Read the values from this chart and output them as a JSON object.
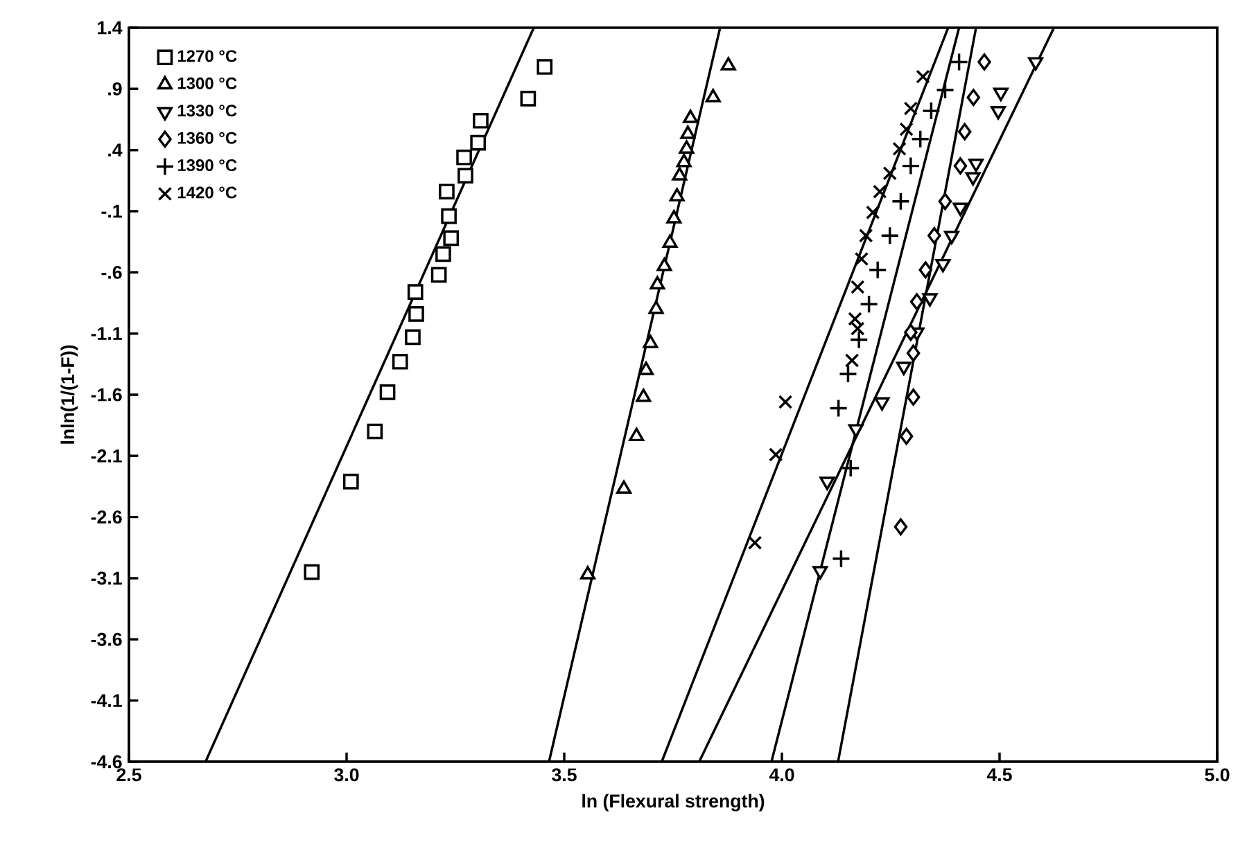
{
  "chart_data": {
    "type": "scatter",
    "xlabel": "ln (Flexural strength)",
    "ylabel": "lnln(1/(1-F))",
    "xlim": [
      2.5,
      5.0
    ],
    "ylim": [
      -4.6,
      1.4
    ],
    "xticks": [
      {
        "value": 2.5,
        "label": "2.5"
      },
      {
        "value": 3.0,
        "label": "3.0"
      },
      {
        "value": 3.5,
        "label": "3.5"
      },
      {
        "value": 4.0,
        "label": "4.0"
      },
      {
        "value": 4.5,
        "label": "4.5"
      },
      {
        "value": 5.0,
        "label": "5.0"
      }
    ],
    "yticks": [
      {
        "value": 1.4,
        "label": "1.4"
      },
      {
        "value": 0.9,
        "label": ".9"
      },
      {
        "value": 0.4,
        "label": ".4"
      },
      {
        "value": -0.1,
        "label": "-.1"
      },
      {
        "value": -0.6,
        "label": "-.6"
      },
      {
        "value": -1.1,
        "label": "-1.1"
      },
      {
        "value": -1.6,
        "label": "-1.6"
      },
      {
        "value": -2.1,
        "label": "-2.1"
      },
      {
        "value": -2.6,
        "label": "-2.6"
      },
      {
        "value": -3.1,
        "label": "-3.1"
      },
      {
        "value": -3.6,
        "label": "-3.6"
      },
      {
        "value": -4.1,
        "label": "-4.1"
      },
      {
        "value": -4.6,
        "label": "-4.6"
      }
    ],
    "grid": false,
    "legend": "top left",
    "series": [
      {
        "name": "1270 °C",
        "marker": "square",
        "color": "#000000",
        "x": [
          3.455,
          3.417,
          3.308,
          3.302,
          3.27,
          3.273,
          3.23,
          3.235,
          3.24,
          3.222,
          3.212,
          3.158,
          3.16,
          3.152,
          3.123,
          3.094,
          3.065,
          3.01,
          2.92
        ],
        "values": [
          1.08,
          0.82,
          0.64,
          0.46,
          0.34,
          0.19,
          0.06,
          -0.14,
          -0.32,
          -0.45,
          -0.62,
          -0.76,
          -0.94,
          -1.13,
          -1.33,
          -1.58,
          -1.9,
          -2.31,
          -3.05
        ]
      },
      {
        "name": "1300 °C",
        "marker": "triangle",
        "color": "#000000",
        "x": [
          3.877,
          3.842,
          3.79,
          3.784,
          3.781,
          3.775,
          3.765,
          3.759,
          3.752,
          3.743,
          3.73,
          3.714,
          3.711,
          3.698,
          3.688,
          3.682,
          3.666,
          3.637,
          3.554
        ],
        "values": [
          1.09,
          0.83,
          0.66,
          0.53,
          0.41,
          0.3,
          0.19,
          0.02,
          -0.16,
          -0.36,
          -0.55,
          -0.7,
          -0.9,
          -1.18,
          -1.4,
          -1.62,
          -1.94,
          -2.37,
          -3.07
        ]
      },
      {
        "name": "1330 °C",
        "marker": "triangle-down",
        "color": "#000000",
        "x": [
          4.583,
          4.503,
          4.497,
          4.446,
          4.439,
          4.41,
          4.39,
          4.37,
          4.34,
          4.31,
          4.28,
          4.23,
          4.17,
          4.104,
          4.088
        ],
        "values": [
          1.12,
          0.87,
          0.72,
          0.29,
          0.18,
          -0.07,
          -0.3,
          -0.53,
          -0.81,
          -1.09,
          -1.37,
          -1.66,
          -1.88,
          -2.31,
          -3.04
        ]
      },
      {
        "name": "1360 °C",
        "marker": "diamond",
        "color": "#000000",
        "x": [
          4.465,
          4.44,
          4.42,
          4.41,
          4.375,
          4.35,
          4.33,
          4.31,
          4.296,
          4.302,
          4.302,
          4.286,
          4.273
        ],
        "values": [
          1.12,
          0.83,
          0.55,
          0.27,
          -0.02,
          -0.3,
          -0.58,
          -0.84,
          -1.09,
          -1.26,
          -1.62,
          -1.94,
          -2.68
        ]
      },
      {
        "name": "1390 °C",
        "marker": "plus",
        "color": "#000000",
        "x": [
          4.407,
          4.375,
          4.343,
          4.318,
          4.296,
          4.273,
          4.248,
          4.22,
          4.2,
          4.177,
          4.152,
          4.13,
          4.158,
          4.136
        ],
        "values": [
          1.12,
          0.89,
          0.72,
          0.49,
          0.27,
          -0.02,
          -0.3,
          -0.58,
          -0.86,
          -1.15,
          -1.43,
          -1.71,
          -2.2,
          -2.94
        ]
      },
      {
        "name": "1420 °C",
        "marker": "cross",
        "color": "#000000",
        "x": [
          4.324,
          4.296,
          4.286,
          4.27,
          4.248,
          4.225,
          4.209,
          4.193,
          4.183,
          4.174,
          4.168,
          4.174,
          4.161,
          4.008,
          3.986,
          3.938
        ],
        "values": [
          1.0,
          0.74,
          0.57,
          0.41,
          0.21,
          0.06,
          -0.11,
          -0.3,
          -0.49,
          -0.72,
          -0.98,
          -1.06,
          -1.32,
          -1.66,
          -2.09,
          -2.81
        ]
      },
      {
        "type": "line",
        "color": "#000000",
        "x": [
          2.676,
          3.43
        ],
        "values": [
          -4.6,
          1.4
        ]
      },
      {
        "type": "line",
        "color": "#000000",
        "x": [
          3.465,
          3.858
        ],
        "values": [
          -4.6,
          1.4
        ]
      },
      {
        "type": "line",
        "color": "#000000",
        "x": [
          3.81,
          4.625
        ],
        "values": [
          -4.6,
          1.4
        ]
      },
      {
        "type": "line",
        "color": "#000000",
        "x": [
          4.129,
          4.446
        ],
        "values": [
          -4.6,
          1.4
        ]
      },
      {
        "type": "line",
        "color": "#000000",
        "x": [
          3.976,
          4.407
        ],
        "values": [
          -4.6,
          1.4
        ]
      },
      {
        "type": "line",
        "color": "#000000",
        "x": [
          3.724,
          4.382
        ],
        "values": [
          -4.6,
          1.4
        ]
      }
    ]
  }
}
